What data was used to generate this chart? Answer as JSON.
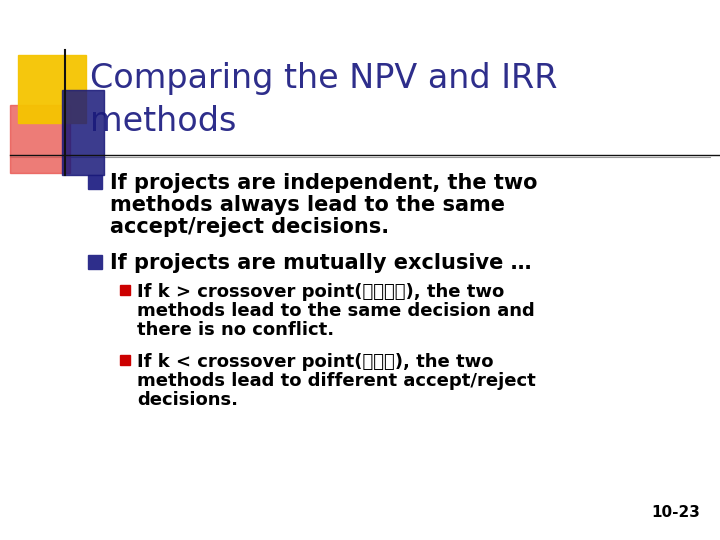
{
  "title_line1": "Comparing the NPV and IRR",
  "title_line2": "methods",
  "title_color": "#2E2E8B",
  "bg_color": "#FFFFFF",
  "bullet_color": "#2E2E8B",
  "sub_bullet_color": "#CC0000",
  "text_color": "#000000",
  "slide_num": "10-23",
  "bullet1_line1": "If projects are independent, the two",
  "bullet1_line2": "methods always lead to the same",
  "bullet1_line3": "accept/reject decisions.",
  "bullet2": "If projects are mutually exclusive …",
  "sub_bullet1_line1": "If k > crossover point(不衝突區), the two",
  "sub_bullet1_line2": "methods lead to the same decision and",
  "sub_bullet1_line3": "there is no conflict.",
  "sub_bullet2_line1": "If k < crossover point(衝突區), the two",
  "sub_bullet2_line2": "methods lead to different accept/reject",
  "sub_bullet2_line3": "decisions.",
  "deco_yellow": "#F5C400",
  "deco_red": "#E8504A",
  "deco_blue_dark": "#1A1A7A",
  "deco_blue_light": "#4444CC",
  "line_color": "#999999"
}
